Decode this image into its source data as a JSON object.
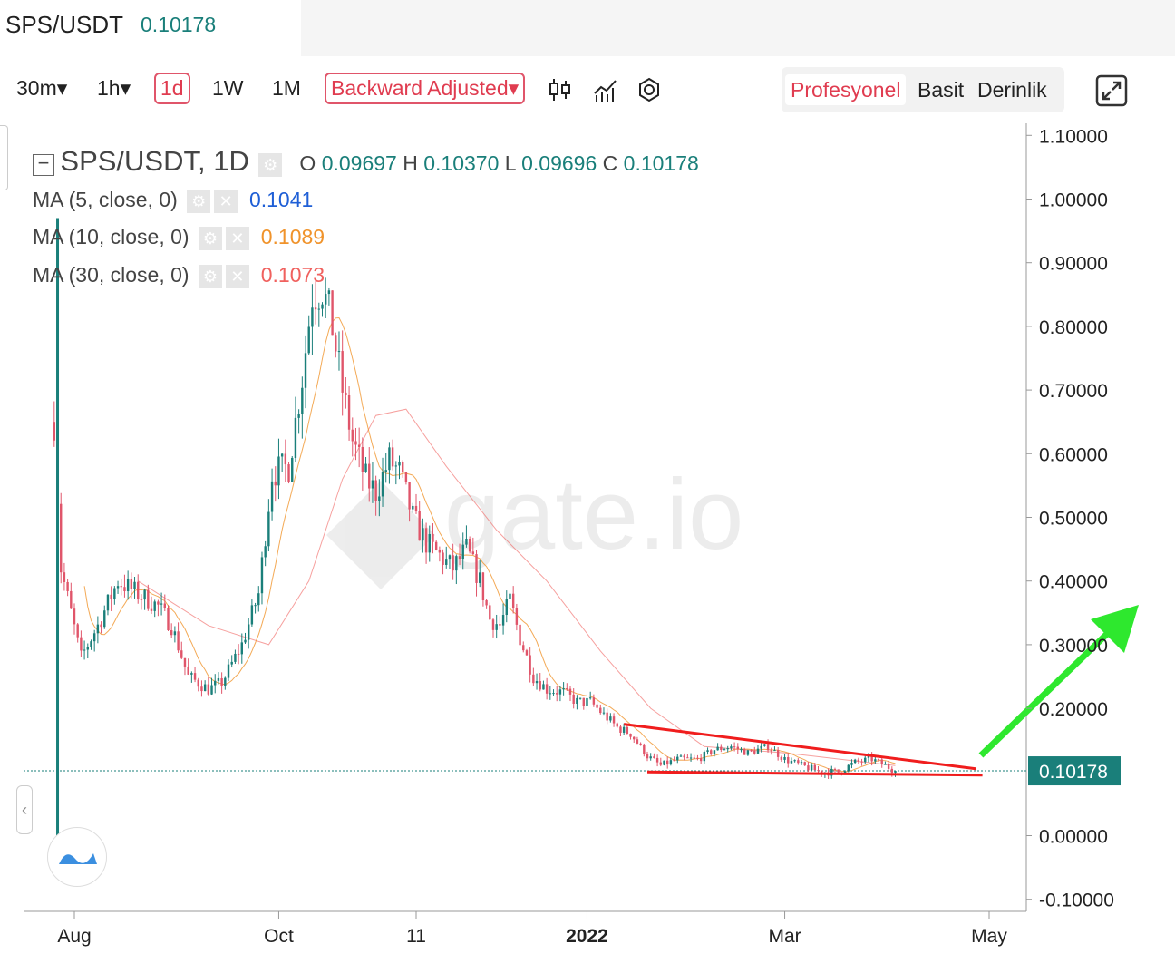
{
  "header": {
    "symbol": "SPS/USDT",
    "price": "0.10178"
  },
  "toolbar": {
    "intervals": [
      "30m▾",
      "1h▾",
      "1d",
      "1W",
      "1M"
    ],
    "active_interval": "1d",
    "adjust_label": "Backward Adjusted▾",
    "icons": [
      "candlestick-icon",
      "indicators-icon",
      "settings-icon",
      "fullscreen-icon"
    ],
    "modes": [
      "Profesyonel",
      "Basit",
      "Derinlik"
    ],
    "active_mode": "Profesyonel"
  },
  "legend": {
    "title": "SPS/USDT, 1D",
    "o_label": "O",
    "o": "0.09697",
    "h_label": "H",
    "h": "0.10370",
    "l_label": "L",
    "l": "0.09696",
    "c_label": "C",
    "c": "0.10178",
    "ma": [
      {
        "label": "MA (5, close, 0)",
        "value": "0.1041",
        "color": "#1f5fd6"
      },
      {
        "label": "MA (10, close, 0)",
        "value": "0.1089",
        "color": "#f0932b"
      },
      {
        "label": "MA (30, close, 0)",
        "value": "0.1073",
        "color": "#f0615e"
      }
    ]
  },
  "colors": {
    "up": "#1a7f7a",
    "down": "#e0556a",
    "annotation_line": "#f01d1d",
    "arrow": "#2ee82e",
    "price_tag": "#1a7f7a"
  },
  "chart_data": {
    "type": "candlestick",
    "yticks": [
      "1.10000",
      "1.00000",
      "0.90000",
      "0.80000",
      "0.70000",
      "0.60000",
      "0.50000",
      "0.40000",
      "0.30000",
      "0.20000",
      "0.10178",
      "0.00000",
      "-0.10000"
    ],
    "ytick_values": [
      1.1,
      1.0,
      0.9,
      0.8,
      0.7,
      0.6,
      0.5,
      0.4,
      0.3,
      0.2,
      0.0,
      -0.1
    ],
    "ylim": [
      -0.1,
      1.1
    ],
    "xticks": [
      "Aug",
      "Oct",
      "11",
      "2022",
      "Mar",
      "May"
    ],
    "xtick_dates": [
      "2021-08-01",
      "2021-10-01",
      "2021-11-11",
      "2022-01-01",
      "2022-03-01",
      "2022-05-01"
    ],
    "last_price": 0.10178,
    "close_path": [
      [
        "2021-07-26",
        0.65
      ],
      [
        "2021-07-28",
        0.42
      ],
      [
        "2021-07-31",
        0.35
      ],
      [
        "2021-08-03",
        0.28
      ],
      [
        "2021-08-08",
        0.33
      ],
      [
        "2021-08-14",
        0.4
      ],
      [
        "2021-08-20",
        0.38
      ],
      [
        "2021-08-26",
        0.36
      ],
      [
        "2021-08-30",
        0.33
      ],
      [
        "2021-09-04",
        0.25
      ],
      [
        "2021-09-10",
        0.23
      ],
      [
        "2021-09-14",
        0.24
      ],
      [
        "2021-09-20",
        0.3
      ],
      [
        "2021-09-25",
        0.38
      ],
      [
        "2021-09-29",
        0.57
      ],
      [
        "2021-10-04",
        0.58
      ],
      [
        "2021-10-08",
        0.72
      ],
      [
        "2021-10-11",
        0.85
      ],
      [
        "2021-10-14",
        0.86
      ],
      [
        "2021-10-17",
        0.8
      ],
      [
        "2021-10-20",
        0.7
      ],
      [
        "2021-10-23",
        0.62
      ],
      [
        "2021-10-27",
        0.56
      ],
      [
        "2021-10-30",
        0.54
      ],
      [
        "2021-11-03",
        0.59
      ],
      [
        "2021-11-06",
        0.57
      ],
      [
        "2021-11-10",
        0.5
      ],
      [
        "2021-11-14",
        0.46
      ],
      [
        "2021-11-18",
        0.44
      ],
      [
        "2021-11-22",
        0.42
      ],
      [
        "2021-11-26",
        0.45
      ],
      [
        "2021-11-30",
        0.4
      ],
      [
        "2021-12-03",
        0.34
      ],
      [
        "2021-12-06",
        0.33
      ],
      [
        "2021-12-09",
        0.37
      ],
      [
        "2021-12-12",
        0.31
      ],
      [
        "2021-12-16",
        0.25
      ],
      [
        "2021-12-20",
        0.23
      ],
      [
        "2021-12-25",
        0.225
      ],
      [
        "2021-12-29",
        0.21
      ],
      [
        "2022-01-02",
        0.21
      ],
      [
        "2022-01-06",
        0.19
      ],
      [
        "2022-01-10",
        0.17
      ],
      [
        "2022-01-14",
        0.16
      ],
      [
        "2022-01-19",
        0.125
      ],
      [
        "2022-01-23",
        0.11
      ],
      [
        "2022-01-28",
        0.12
      ],
      [
        "2022-02-03",
        0.12
      ],
      [
        "2022-02-08",
        0.135
      ],
      [
        "2022-02-13",
        0.14
      ],
      [
        "2022-02-18",
        0.13
      ],
      [
        "2022-02-24",
        0.14
      ],
      [
        "2022-03-01",
        0.12
      ],
      [
        "2022-03-06",
        0.11
      ],
      [
        "2022-03-12",
        0.1
      ],
      [
        "2022-03-17",
        0.1
      ],
      [
        "2022-03-22",
        0.115
      ],
      [
        "2022-03-27",
        0.12
      ],
      [
        "2022-03-31",
        0.11
      ],
      [
        "2022-04-03",
        0.10178
      ]
    ],
    "ma30_path": [
      [
        "2021-08-20",
        0.4
      ],
      [
        "2021-09-10",
        0.33
      ],
      [
        "2021-09-28",
        0.3
      ],
      [
        "2021-10-10",
        0.4
      ],
      [
        "2021-10-20",
        0.56
      ],
      [
        "2021-10-30",
        0.66
      ],
      [
        "2021-11-08",
        0.67
      ],
      [
        "2021-11-20",
        0.58
      ],
      [
        "2021-12-05",
        0.48
      ],
      [
        "2021-12-20",
        0.4
      ],
      [
        "2022-01-05",
        0.29
      ],
      [
        "2022-01-20",
        0.2
      ],
      [
        "2022-02-05",
        0.14
      ],
      [
        "2022-03-01",
        0.13
      ],
      [
        "2022-04-03",
        0.11
      ]
    ],
    "trendline_upper": [
      [
        "2022-01-12",
        0.175
      ],
      [
        "2022-04-27",
        0.105
      ]
    ],
    "trendline_lower": [
      [
        "2022-01-19",
        0.1
      ],
      [
        "2022-04-29",
        0.095
      ]
    ]
  }
}
